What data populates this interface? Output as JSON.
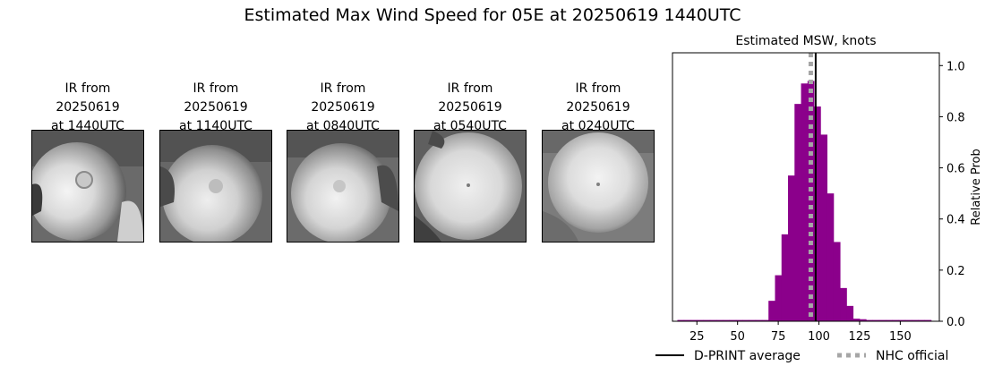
{
  "title": "Estimated Max Wind Speed for 05E at 20250619 1440UTC",
  "panels": [
    {
      "line1": "IR from",
      "line2": "20250619",
      "line3": "at 1440UTC"
    },
    {
      "line1": "IR from",
      "line2": "20250619",
      "line3": "at 1140UTC"
    },
    {
      "line1": "IR from",
      "line2": "20250619",
      "line3": "at 0840UTC"
    },
    {
      "line1": "IR from",
      "line2": "20250619",
      "line3": "at 0540UTC"
    },
    {
      "line1": "IR from",
      "line2": "20250619",
      "line3": "at 0240UTC"
    }
  ],
  "chart_data": {
    "type": "bar",
    "title": "Estimated MSW, knots",
    "xlabel": "",
    "ylabel": "Relative Prob",
    "xlim": [
      10,
      174
    ],
    "ylim": [
      0,
      1.05
    ],
    "xticks": [
      25,
      50,
      75,
      100,
      125,
      150
    ],
    "yticks": [
      0.0,
      0.2,
      0.4,
      0.6,
      0.8,
      1.0
    ],
    "bin_width": 4,
    "bins": [
      {
        "x": 15,
        "value": 0.005
      },
      {
        "x": 19,
        "value": 0.005
      },
      {
        "x": 23,
        "value": 0.005
      },
      {
        "x": 27,
        "value": 0.005
      },
      {
        "x": 31,
        "value": 0.005
      },
      {
        "x": 35,
        "value": 0.005
      },
      {
        "x": 39,
        "value": 0.005
      },
      {
        "x": 43,
        "value": 0.005
      },
      {
        "x": 47,
        "value": 0.005
      },
      {
        "x": 51,
        "value": 0.005
      },
      {
        "x": 55,
        "value": 0.005
      },
      {
        "x": 59,
        "value": 0.005
      },
      {
        "x": 63,
        "value": 0.005
      },
      {
        "x": 67,
        "value": 0.005
      },
      {
        "x": 71,
        "value": 0.08
      },
      {
        "x": 75,
        "value": 0.18
      },
      {
        "x": 79,
        "value": 0.34
      },
      {
        "x": 83,
        "value": 0.57
      },
      {
        "x": 87,
        "value": 0.85
      },
      {
        "x": 91,
        "value": 0.93
      },
      {
        "x": 95,
        "value": 0.94
      },
      {
        "x": 99,
        "value": 0.84
      },
      {
        "x": 103,
        "value": 0.73
      },
      {
        "x": 107,
        "value": 0.5
      },
      {
        "x": 111,
        "value": 0.31
      },
      {
        "x": 115,
        "value": 0.13
      },
      {
        "x": 119,
        "value": 0.06
      },
      {
        "x": 123,
        "value": 0.01
      },
      {
        "x": 127,
        "value": 0.008
      },
      {
        "x": 131,
        "value": 0.005
      },
      {
        "x": 135,
        "value": 0.005
      },
      {
        "x": 139,
        "value": 0.005
      },
      {
        "x": 143,
        "value": 0.005
      },
      {
        "x": 147,
        "value": 0.005
      },
      {
        "x": 151,
        "value": 0.005
      },
      {
        "x": 155,
        "value": 0.005
      },
      {
        "x": 159,
        "value": 0.005
      },
      {
        "x": 163,
        "value": 0.005
      },
      {
        "x": 167,
        "value": 0.005
      }
    ],
    "dprint_average": 98,
    "nhc_official": 95,
    "bar_color": "#8b008b",
    "legend": [
      {
        "label": "D-PRINT average",
        "color": "#000000",
        "style": "solid"
      },
      {
        "label": "NHC official",
        "color": "#a6a6a6",
        "style": "dotted"
      }
    ],
    "legend_position": "bottom"
  }
}
